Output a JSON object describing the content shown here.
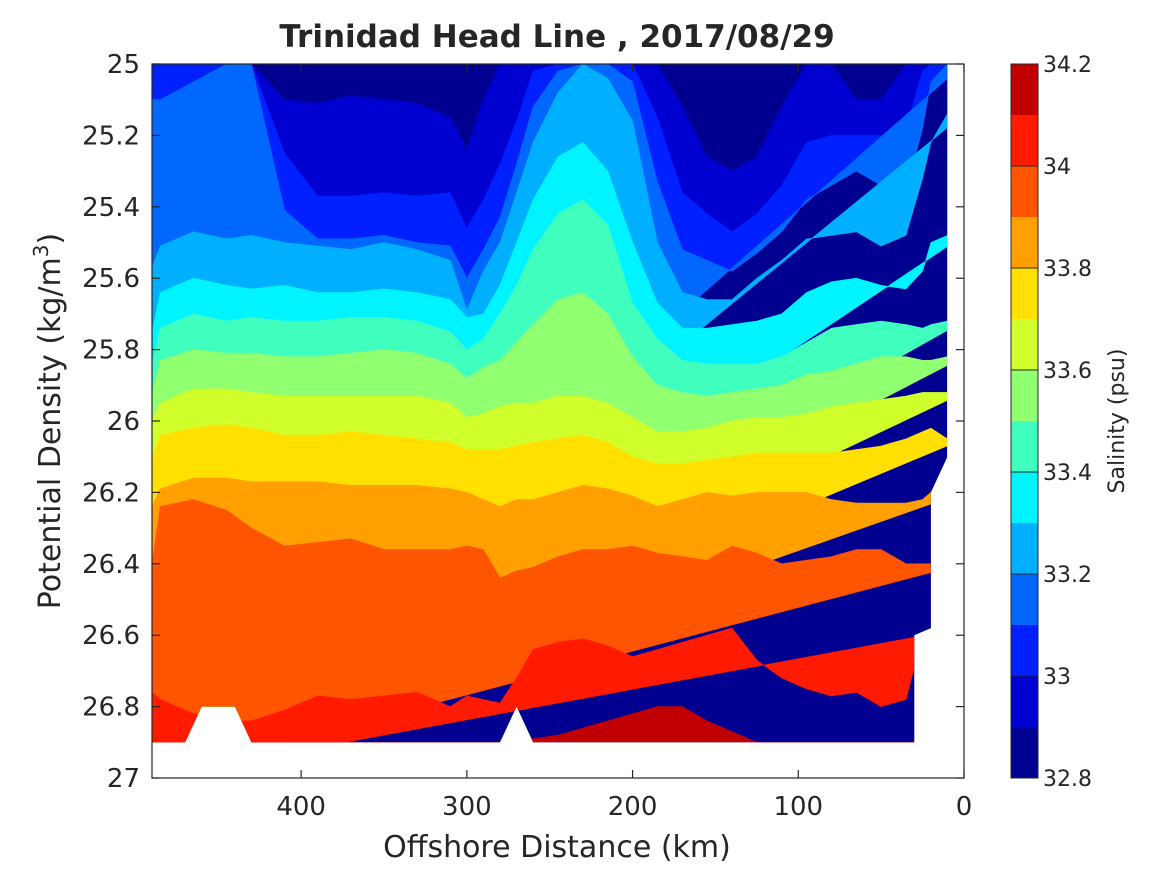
{
  "chart_data": {
    "type": "heatmap",
    "title": "Trinidad Head Line , 2017/08/29",
    "xlabel": "Offshore Distance (km)",
    "ylabel_main": "Potential Density (kg/m",
    "ylabel_sup": "3",
    "ylabel_close": ")",
    "xlim": [
      490,
      0
    ],
    "ylim": [
      27,
      25
    ],
    "x_ticks": [
      400,
      300,
      200,
      100,
      0
    ],
    "x_tick_labels": [
      "400",
      "300",
      "200",
      "100",
      "0"
    ],
    "y_ticks": [
      25,
      25.2,
      25.4,
      25.6,
      25.8,
      26,
      26.2,
      26.4,
      26.6,
      26.8,
      27
    ],
    "y_tick_labels": [
      "25",
      "25.2",
      "25.4",
      "25.6",
      "25.8",
      "26",
      "26.2",
      "26.4",
      "26.6",
      "26.8",
      "27"
    ],
    "colorbar": {
      "label": "Salinity (psu)",
      "levels": [
        32.8,
        32.9,
        33.0,
        33.1,
        33.2,
        33.3,
        33.4,
        33.5,
        33.6,
        33.7,
        33.8,
        33.9,
        34.0,
        34.1,
        34.2
      ],
      "tick_values": [
        32.8,
        33,
        33.2,
        33.4,
        33.6,
        33.8,
        34,
        34.2
      ],
      "tick_labels": [
        "32.8",
        "33",
        "33.2",
        "33.4",
        "33.6",
        "33.8",
        "34",
        "34.2"
      ],
      "colors": [
        "#000090",
        "#0000d0",
        "#0020ff",
        "#0068ff",
        "#00b0ff",
        "#00f4ff",
        "#40ffbe",
        "#90ff70",
        "#d0ff2c",
        "#ffe000",
        "#ffa000",
        "#ff5400",
        "#ff1a00",
        "#c00000"
      ]
    },
    "stations_x": [
      490,
      485,
      465,
      445,
      430,
      410,
      390,
      370,
      350,
      330,
      310,
      300,
      290,
      280,
      270,
      260,
      245,
      230,
      215,
      200,
      185,
      170,
      155,
      140,
      125,
      110,
      95,
      80,
      65,
      50,
      35,
      25,
      20,
      10
    ],
    "contours": [
      {
        "level": 32.9,
        "y": [
          25.0,
          25.0,
          25.0,
          25.0,
          25.0,
          25.1,
          25.11,
          25.09,
          25.1,
          25.11,
          25.15,
          25.24,
          25.1,
          25.0,
          25.0,
          25.0,
          25.0,
          25.0,
          25.0,
          25.0,
          25.0,
          25.12,
          25.26,
          25.3,
          25.26,
          25.12,
          25.0,
          25.0,
          25.1,
          25.1,
          25.0,
          25.0,
          25.0,
          25.0
        ]
      },
      {
        "level": 33.0,
        "y": [
          25.0,
          25.0,
          25.0,
          25.0,
          25.0,
          25.25,
          25.37,
          25.37,
          25.36,
          25.37,
          25.36,
          25.46,
          25.38,
          25.28,
          25.16,
          25.02,
          25.0,
          25.0,
          25.0,
          25.0,
          25.15,
          25.36,
          25.42,
          25.47,
          25.42,
          25.34,
          25.22,
          25.2,
          25.2,
          25.2,
          25.18,
          25.02,
          25.0,
          25.0
        ]
      },
      {
        "level": 33.1,
        "y": [
          25.1,
          25.1,
          25.05,
          25.0,
          25.0,
          25.41,
          25.49,
          25.49,
          25.48,
          25.5,
          25.51,
          25.6,
          25.52,
          25.43,
          25.28,
          25.12,
          25.02,
          25.0,
          25.0,
          25.05,
          25.33,
          25.52,
          25.55,
          25.58,
          25.53,
          25.47,
          25.38,
          25.34,
          25.3,
          25.34,
          25.36,
          25.18,
          25.05,
          25.0
        ]
      },
      {
        "level": 33.2,
        "y": [
          25.57,
          25.51,
          25.47,
          25.49,
          25.48,
          25.5,
          25.51,
          25.52,
          25.5,
          25.52,
          25.55,
          25.69,
          25.58,
          25.5,
          25.36,
          25.22,
          25.08,
          25.0,
          25.04,
          25.16,
          25.5,
          25.64,
          25.66,
          25.66,
          25.6,
          25.55,
          25.49,
          25.48,
          25.47,
          25.51,
          25.48,
          25.32,
          25.22,
          25.14
        ]
      },
      {
        "level": 33.3,
        "y": [
          25.75,
          25.64,
          25.6,
          25.62,
          25.63,
          25.62,
          25.64,
          25.64,
          25.63,
          25.64,
          25.66,
          25.71,
          25.7,
          25.62,
          25.5,
          25.38,
          25.26,
          25.22,
          25.3,
          25.5,
          25.67,
          25.74,
          25.74,
          25.73,
          25.72,
          25.7,
          25.64,
          25.61,
          25.6,
          25.62,
          25.63,
          25.58,
          25.5,
          25.48
        ]
      },
      {
        "level": 33.4,
        "y": [
          25.84,
          25.74,
          25.7,
          25.72,
          25.71,
          25.72,
          25.72,
          25.71,
          25.71,
          25.72,
          25.75,
          25.8,
          25.77,
          25.7,
          25.62,
          25.52,
          25.42,
          25.38,
          25.45,
          25.67,
          25.77,
          25.83,
          25.84,
          25.84,
          25.84,
          25.82,
          25.78,
          25.74,
          25.73,
          25.72,
          25.73,
          25.74,
          25.73,
          25.72
        ]
      },
      {
        "level": 33.5,
        "y": [
          25.92,
          25.83,
          25.8,
          25.81,
          25.81,
          25.82,
          25.82,
          25.81,
          25.8,
          25.81,
          25.84,
          25.88,
          25.85,
          25.83,
          25.78,
          25.73,
          25.66,
          25.64,
          25.7,
          25.82,
          25.9,
          25.92,
          25.93,
          25.92,
          25.91,
          25.9,
          25.87,
          25.86,
          25.84,
          25.82,
          25.82,
          25.83,
          25.83,
          25.82
        ]
      },
      {
        "level": 33.6,
        "y": [
          26.0,
          25.95,
          25.91,
          25.91,
          25.92,
          25.93,
          25.93,
          25.93,
          25.93,
          25.93,
          25.95,
          25.99,
          25.98,
          25.96,
          25.95,
          25.95,
          25.93,
          25.93,
          25.95,
          25.99,
          26.03,
          26.03,
          26.02,
          26.0,
          25.99,
          25.99,
          25.98,
          25.96,
          25.95,
          25.94,
          25.93,
          25.92,
          25.92,
          25.92
        ]
      },
      {
        "level": 33.7,
        "y": [
          26.11,
          26.04,
          26.02,
          26.01,
          26.02,
          26.04,
          26.04,
          26.03,
          26.04,
          26.05,
          26.06,
          26.08,
          26.08,
          26.08,
          26.07,
          26.06,
          26.05,
          26.04,
          26.06,
          26.1,
          26.12,
          26.12,
          26.11,
          26.1,
          26.09,
          26.09,
          26.09,
          26.09,
          26.08,
          26.07,
          26.05,
          26.03,
          26.02,
          26.05
        ]
      },
      {
        "level": 33.8,
        "y": [
          26.24,
          26.19,
          26.16,
          26.16,
          26.17,
          26.17,
          26.17,
          26.18,
          26.18,
          26.18,
          26.19,
          26.2,
          26.22,
          26.24,
          26.22,
          26.22,
          26.2,
          26.18,
          26.19,
          26.21,
          26.24,
          26.22,
          26.2,
          26.21,
          26.2,
          26.2,
          26.2,
          26.22,
          26.23,
          26.23,
          26.23,
          26.22,
          26.2,
          26.2
        ]
      },
      {
        "level": 33.9,
        "y": [
          26.4,
          26.24,
          26.22,
          26.25,
          26.3,
          26.35,
          26.34,
          26.33,
          26.36,
          26.36,
          26.36,
          26.35,
          26.36,
          26.44,
          26.42,
          26.41,
          26.38,
          26.36,
          26.36,
          26.35,
          26.37,
          26.38,
          26.39,
          26.35,
          26.37,
          26.4,
          26.39,
          26.38,
          26.36,
          26.36,
          26.4,
          26.4,
          26.4,
          26.4
        ]
      },
      {
        "level": 34.0,
        "y": [
          26.76,
          26.78,
          26.82,
          26.84,
          26.84,
          26.81,
          26.77,
          26.78,
          26.77,
          26.76,
          26.8,
          26.77,
          26.78,
          26.79,
          26.72,
          26.64,
          26.62,
          26.61,
          26.63,
          26.66,
          26.64,
          26.62,
          26.6,
          26.58,
          26.67,
          26.72,
          26.75,
          26.77,
          26.76,
          26.8,
          26.78,
          26.6,
          26.58,
          26.58
        ]
      },
      {
        "level": 34.1,
        "y": [
          26.9,
          26.9,
          26.9,
          26.9,
          26.9,
          26.9,
          26.9,
          26.9,
          26.9,
          26.9,
          26.9,
          26.9,
          26.9,
          26.9,
          26.9,
          26.89,
          26.88,
          26.86,
          26.84,
          26.82,
          26.8,
          26.8,
          26.84,
          26.87,
          26.9,
          26.9,
          26.9,
          26.9,
          26.9,
          26.9,
          26.9,
          26.9,
          26.9,
          26.9
        ]
      }
    ],
    "data_bottom": [
      {
        "x": 490,
        "y": 26.9
      },
      {
        "x": 470,
        "y": 26.9
      },
      {
        "x": 460,
        "y": 26.8
      },
      {
        "x": 440,
        "y": 26.8
      },
      {
        "x": 430,
        "y": 26.9
      },
      {
        "x": 280,
        "y": 26.9
      },
      {
        "x": 270,
        "y": 26.8
      },
      {
        "x": 260,
        "y": 26.9
      },
      {
        "x": 30,
        "y": 26.9
      },
      {
        "x": 30,
        "y": 26.6
      },
      {
        "x": 20,
        "y": 26.58
      },
      {
        "x": 20,
        "y": 26.2
      },
      {
        "x": 10,
        "y": 26.1
      },
      {
        "x": 10,
        "y": 25.0
      }
    ]
  }
}
